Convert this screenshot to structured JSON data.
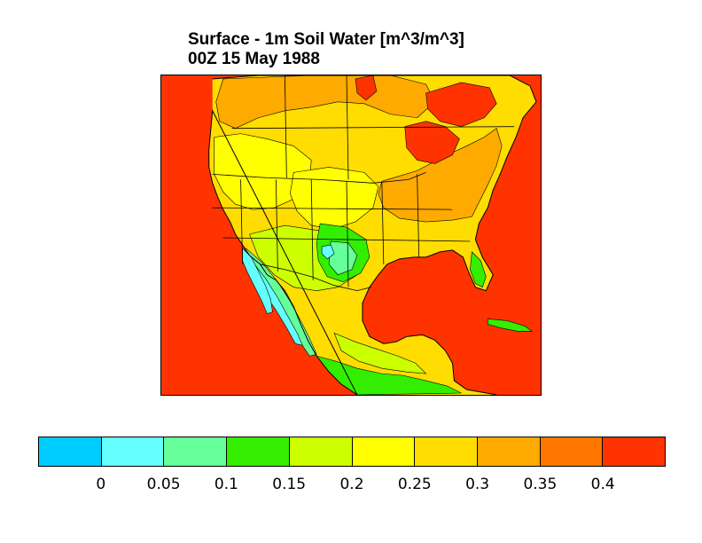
{
  "title": {
    "line1": "Surface - 1m Soil Water [m^3/m^3]",
    "line2": "00Z 15 May 1988"
  },
  "map": {
    "ocean_color": "#ff3300",
    "land_base_color": "#ffdd00",
    "boundary_color": "#000000"
  },
  "colorbar": {
    "colors": [
      "#00ccff",
      "#66ffff",
      "#66ff99",
      "#33ee00",
      "#ccff00",
      "#ffff00",
      "#ffdd00",
      "#ffaa00",
      "#ff7700",
      "#ff3300"
    ],
    "labels": [
      "0",
      "0.05",
      "0.1",
      "0.15",
      "0.2",
      "0.25",
      "0.3",
      "0.35",
      "0.4"
    ]
  }
}
